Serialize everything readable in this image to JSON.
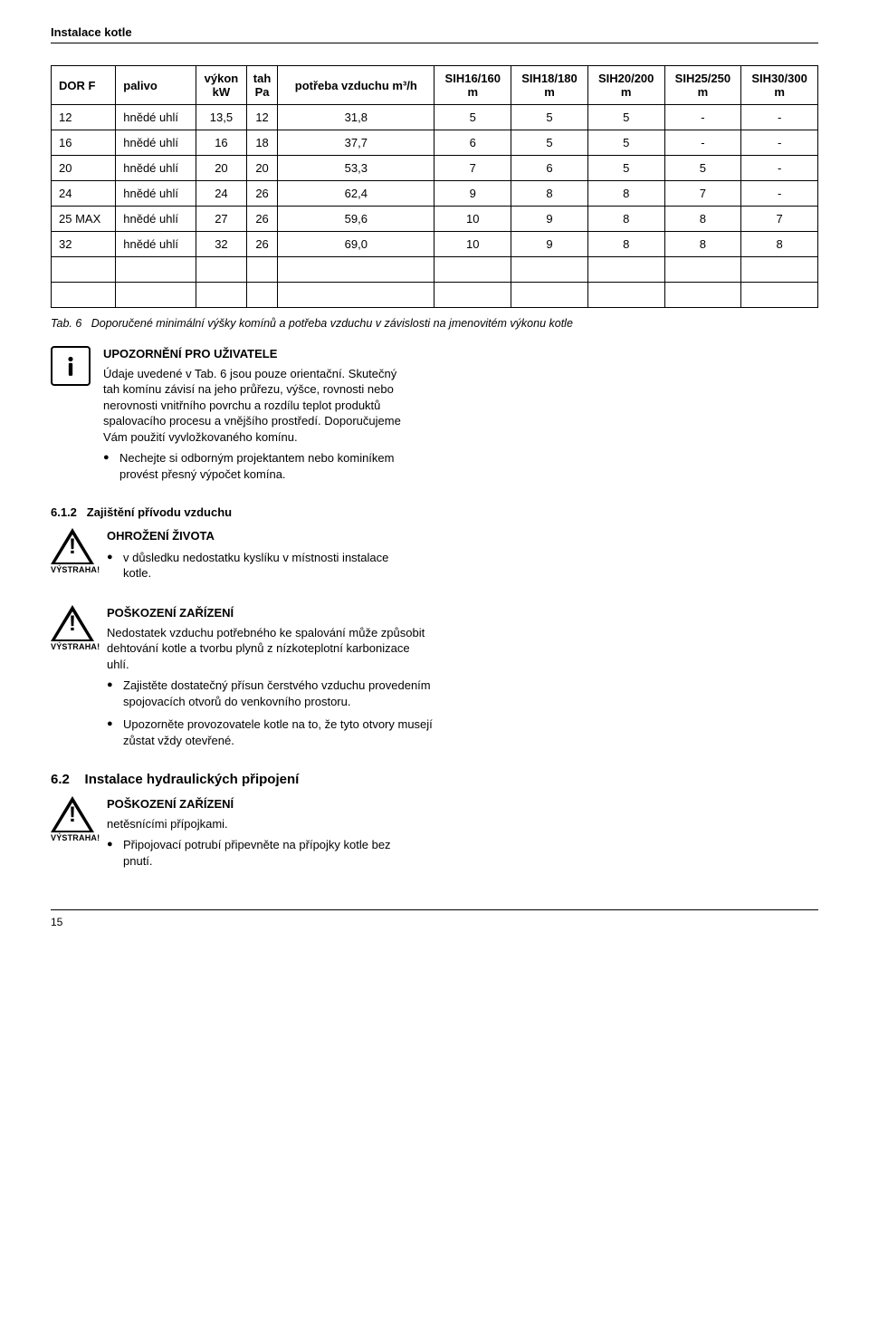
{
  "header": {
    "title": "Instalace kotle"
  },
  "table": {
    "columns": [
      {
        "label": "DOR F",
        "align": "left"
      },
      {
        "label": "palivo",
        "align": "left"
      },
      {
        "label": "výkon\nkW"
      },
      {
        "label": "tah\nPa"
      },
      {
        "label": "potřeba vzduchu m³/h"
      },
      {
        "label": "SIH16/160\nm"
      },
      {
        "label": "SIH18/180\nm"
      },
      {
        "label": "SIH20/200\nm"
      },
      {
        "label": "SIH25/250\nm"
      },
      {
        "label": "SIH30/300\nm"
      }
    ],
    "rows": [
      [
        "12",
        "hnědé uhlí",
        "13,5",
        "12",
        "31,8",
        "5",
        "5",
        "5",
        "-",
        "-"
      ],
      [
        "16",
        "hnědé uhlí",
        "16",
        "18",
        "37,7",
        "6",
        "5",
        "5",
        "-",
        "-"
      ],
      [
        "20",
        "hnědé uhlí",
        "20",
        "20",
        "53,3",
        "7",
        "6",
        "5",
        "5",
        "-"
      ],
      [
        "24",
        "hnědé uhlí",
        "24",
        "26",
        "62,4",
        "9",
        "8",
        "8",
        "7",
        "-"
      ],
      [
        "25 MAX",
        "hnědé uhlí",
        "27",
        "26",
        "59,6",
        "10",
        "9",
        "8",
        "8",
        "7"
      ],
      [
        "32",
        "hnědé uhlí",
        "32",
        "26",
        "69,0",
        "10",
        "9",
        "8",
        "8",
        "8"
      ]
    ],
    "empty_rows": 2,
    "caption_prefix": "Tab. 6",
    "caption_text": "Doporučené minimální výšky komínů a potřeba vzduchu v závislosti na jmenovitém výkonu kotle"
  },
  "info_note": {
    "title": "UPOZORNĚNÍ PRO UŽIVATELE",
    "body": "Údaje uvedené v Tab. 6 jsou pouze orientační. Skutečný tah komínu závisí na jeho průřezu, výšce, rovnosti nebo nerovnosti vnitřního povrchu a rozdílu teplot produktů spalovacího procesu a vnějšího prostředí. Doporučujeme Vám použití vyvložkovaného komínu.",
    "bullets": [
      "Nechejte si odborným projektantem nebo kominíkem provést přesný výpočet komína."
    ]
  },
  "section_612": {
    "num": "6.1.2",
    "title": "Zajištění přívodu vzduchu"
  },
  "warn1": {
    "label": "VÝSTRAHA!",
    "title": "OHROŽENÍ ŽIVOTA",
    "bullets": [
      "v důsledku nedostatku kyslíku v místnosti instalace kotle."
    ]
  },
  "warn2": {
    "label": "VÝSTRAHA!",
    "title": "POŠKOZENÍ ZAŘÍZENÍ",
    "body": "Nedostatek vzduchu potřebného ke spalování může způsobit dehtování kotle a tvorbu plynů z nízkoteplotní karbonizace uhlí.",
    "bullets": [
      "Zajistěte dostatečný přísun čerstvého vzduchu provedením spojovacích otvorů do venkovního prostoru.",
      "Upozorněte provozovatele kotle na to, že tyto otvory musejí zůstat vždy otevřené."
    ]
  },
  "section_62": {
    "num": "6.2",
    "title": "Instalace hydraulických připojení"
  },
  "warn3": {
    "label": "VÝSTRAHA!",
    "title": "POŠKOZENÍ ZAŘÍZENÍ",
    "body": "netěsnícími přípojkami.",
    "bullets": [
      "Připojovací potrubí připevněte na přípojky kotle bez pnutí."
    ]
  },
  "footer": {
    "page": "15"
  }
}
